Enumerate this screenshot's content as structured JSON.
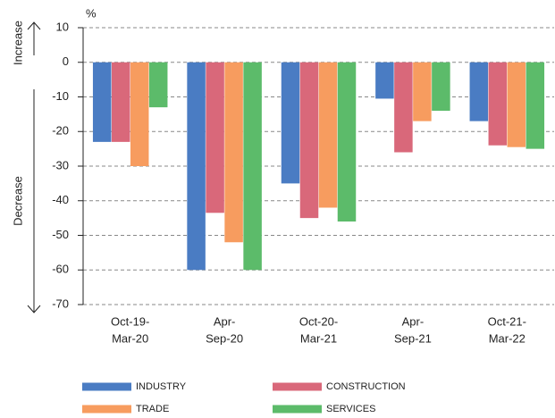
{
  "chart_data": {
    "type": "bar",
    "y_unit": "%",
    "increase_label": "Increase",
    "decrease_label": "Decrease",
    "categories": [
      [
        "Oct-19-",
        "Mar-20"
      ],
      [
        "Apr-",
        "Sep-20"
      ],
      [
        "Oct-20-",
        "Mar-21"
      ],
      [
        "Apr-",
        "Sep-21"
      ],
      [
        "Oct-21-",
        "Mar-22"
      ]
    ],
    "series": [
      {
        "name": "INDUSTRY",
        "color": "#4a7cc3",
        "values": [
          -23,
          -60,
          -35,
          -10.5,
          -17
        ]
      },
      {
        "name": "CONSTRUCTION",
        "color": "#d9687a",
        "values": [
          -23,
          -43.5,
          -45,
          -26,
          -24
        ]
      },
      {
        "name": "TRADE",
        "color": "#f79c5f",
        "values": [
          -30,
          -52,
          -42,
          -17,
          -24.5
        ]
      },
      {
        "name": "SERVICES",
        "color": "#5cbb6a",
        "values": [
          -13,
          -60,
          -46,
          -14,
          -25
        ]
      }
    ],
    "ylim": [
      -70,
      10
    ],
    "yticks": [
      -70,
      -60,
      -50,
      -40,
      -30,
      -20,
      -10,
      0,
      10
    ],
    "grid": true
  }
}
